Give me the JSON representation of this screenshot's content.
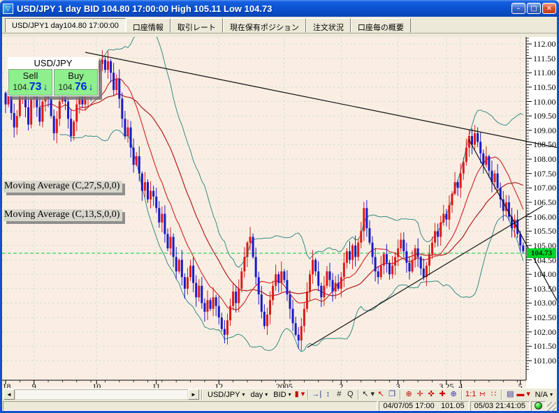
{
  "window": {
    "title": "USD/JPY 1 day BID 104.80 17:00:00 High 105.11 Low 104.73",
    "minimize": "–",
    "maximize": "□",
    "close": "✕"
  },
  "tabs": [
    {
      "id": "chart",
      "label": "USD/JPY1 day104.80 17:00:00"
    },
    {
      "id": "account-info",
      "label": "口座情報"
    },
    {
      "id": "trade-rates",
      "label": "取引レート"
    },
    {
      "id": "open-positions",
      "label": "現在保有ポジション"
    },
    {
      "id": "order-status",
      "label": "注文状況"
    },
    {
      "id": "account-summary",
      "label": "口座毎の概要"
    }
  ],
  "quote": {
    "pair": "USD/JPY",
    "sell_label": "Sell",
    "buy_label": "Buy",
    "sell": "104.73",
    "buy": "104.76",
    "arrow": "↓"
  },
  "ma_labels": [
    "Moving Average (C,27,S,0,0)",
    "Moving Average (C,13,S,0,0)"
  ],
  "chart_data": {
    "type": "candlestick",
    "symbol": "USD/JPY",
    "interval": "1 day",
    "y_axis": {
      "min": 101.0,
      "max": 112.0,
      "step": 0.5
    },
    "current_price": 104.73,
    "price_tag": "104.73",
    "x_ticks": [
      {
        "label": ".18",
        "i": 0
      },
      {
        "label": "9",
        "i": 10
      },
      {
        "label": "10",
        "i": 32
      },
      {
        "label": "11",
        "i": 53
      },
      {
        "label": "12",
        "i": 75
      },
      {
        "label": "2005",
        "i": 98
      },
      {
        "label": "2",
        "i": 118
      },
      {
        "label": "3",
        "i": 138
      },
      {
        "label": "3.25",
        "i": 155
      },
      {
        "label": "4",
        "i": 160
      },
      {
        "label": "5",
        "i": 181
      }
    ],
    "first_open": 110.3,
    "closes": [
      109.9,
      110.4,
      109.6,
      109.1,
      109.5,
      110.2,
      110.5,
      109.8,
      109.2,
      110.1,
      110.4,
      109.8,
      109.3,
      110.0,
      110.6,
      110.1,
      109.5,
      108.9,
      109.4,
      110.0,
      110.5,
      110.0,
      109.4,
      108.8,
      109.3,
      109.9,
      110.4,
      109.9,
      110.2,
      110.6,
      110.3,
      110.7,
      111.0,
      111.3,
      111.45,
      111.1,
      111.4,
      111.0,
      110.4,
      110.8,
      110.1,
      109.4,
      108.8,
      109.1,
      108.4,
      107.8,
      108.1,
      107.5,
      106.9,
      107.2,
      106.6,
      106.9,
      106.7,
      106.3,
      105.8,
      106.1,
      105.4,
      104.9,
      105.3,
      104.6,
      104.1,
      104.5,
      103.9,
      103.5,
      103.9,
      104.3,
      103.7,
      103.2,
      103.6,
      103.0,
      102.7,
      103.1,
      102.8,
      103.2,
      102.9,
      102.5,
      102.1,
      101.9,
      102.4,
      102.9,
      103.4,
      103.0,
      103.5,
      104.1,
      104.6,
      105.1,
      105.3,
      104.6,
      103.9,
      103.3,
      102.7,
      102.2,
      102.6,
      103.1,
      103.6,
      104.0,
      103.7,
      104.1,
      103.8,
      103.3,
      102.8,
      102.3,
      101.9,
      101.7,
      102.2,
      102.8,
      103.4,
      104.0,
      104.5,
      104.1,
      103.6,
      103.2,
      103.6,
      104.1,
      103.8,
      103.4,
      103.7,
      103.5,
      103.9,
      104.4,
      104.8,
      104.5,
      105.0,
      104.6,
      105.1,
      105.5,
      106.3,
      105.6,
      105.1,
      104.6,
      104.1,
      103.9,
      104.3,
      104.7,
      104.4,
      104.0,
      104.3,
      104.6,
      104.9,
      105.2,
      104.8,
      104.4,
      104.1,
      104.5,
      104.9,
      104.6,
      104.2,
      103.9,
      104.3,
      104.7,
      105.1,
      105.5,
      105.3,
      105.8,
      106.1,
      105.9,
      106.4,
      106.8,
      107.2,
      107.0,
      107.5,
      107.9,
      108.4,
      108.8,
      108.5,
      108.9,
      108.6,
      108.2,
      107.8,
      108.1,
      107.6,
      107.2,
      107.5,
      107.0,
      106.6,
      106.2,
      106.5,
      106.0,
      105.6,
      105.9,
      105.4,
      105.0,
      104.8
    ],
    "last_candle": {
      "open": 105.0,
      "high": 105.11,
      "low": 104.73,
      "close": 104.8
    },
    "overlays": {
      "bollinger": {
        "period": 20,
        "deviation": 2
      },
      "ma_fast": {
        "period": 13
      },
      "ma_slow": {
        "period": 27
      }
    },
    "trendlines": [
      {
        "name": "resistance-line",
        "x1": 119,
        "y1": 22,
        "x2": 797,
        "y2": 159
      },
      {
        "name": "support-line",
        "x1": 437,
        "y1": 445,
        "x2": 774,
        "y2": 242
      },
      {
        "name": "downtrend-line",
        "x1": 668,
        "y1": 147,
        "x2": 798,
        "y2": 385
      }
    ],
    "colors": {
      "up": "#dd1a1a",
      "down": "#1a1ac8",
      "band": "#348b80",
      "ma_fast": "#d03030",
      "ma_slow": "#b01c1c",
      "grid": "#d2e0cc",
      "price_line": "#00c83c",
      "tag_bg": "#00d42a",
      "background": "#faeee4"
    }
  },
  "toolbar": {
    "scroll_left": "◄",
    "scroll_right": "►",
    "caret": "▾",
    "symbol": "USD/JPY",
    "period": "day",
    "price_type": "BID",
    "overlay": "N/A",
    "icon_groups": [
      [
        {
          "name": "candle-chart-icon",
          "glyph": "▮",
          "color": "#cc0000",
          "dropdown": true
        }
      ],
      [
        {
          "name": "snap-to-end-icon",
          "glyph": "→|",
          "color": "#223399"
        },
        {
          "name": "fit-height-icon",
          "glyph": "↕",
          "color": "#223399"
        },
        {
          "name": "grid-toggle-icon",
          "glyph": "#",
          "color": "#222222"
        },
        {
          "name": "zoom-mode-icon",
          "glyph": "Q",
          "color": "#222222"
        }
      ],
      [
        {
          "name": "pointer-tool-icon",
          "glyph": "↖",
          "color": "#222222",
          "dropdown": true
        },
        {
          "name": "crosshair-tool-icon",
          "glyph": "↖",
          "color": "#cc0000"
        },
        {
          "name": "tile-windows-icon",
          "glyph": "❐",
          "color": "#3333bb"
        }
      ],
      [
        {
          "name": "zoom-in-icon",
          "glyph": "⊕",
          "color": "#cc0000"
        },
        {
          "name": "cross-cursor-icon",
          "glyph": "✛",
          "color": "#cc0000"
        },
        {
          "name": "cross-window-icon",
          "glyph": "✜",
          "color": "#cc0000"
        },
        {
          "name": "cross-snap-icon",
          "glyph": "✚",
          "color": "#cc0000"
        },
        {
          "name": "zoom-window-icon",
          "glyph": "⊕",
          "color": "#3333bb"
        }
      ],
      [
        {
          "name": "scale-1-1-icon",
          "glyph": "1:1",
          "color": "#cc0000"
        },
        {
          "name": "scale-fit-icon",
          "glyph": "∺",
          "color": "#cc0000"
        },
        {
          "name": "scale-auto-icon",
          "glyph": "∷",
          "color": "#cc0000"
        }
      ],
      [
        {
          "name": "report-icon",
          "glyph": "▤",
          "color": "#333399"
        },
        {
          "name": "draw-line-icon",
          "glyph": "▬",
          "color": "#cc0000",
          "dropdown": true
        }
      ]
    ]
  },
  "statusbar": {
    "datetime": "04/07/05 17:00",
    "price": "101.05",
    "clock": "05/03 21:41:05",
    "led_color": "#1ecb1e"
  }
}
